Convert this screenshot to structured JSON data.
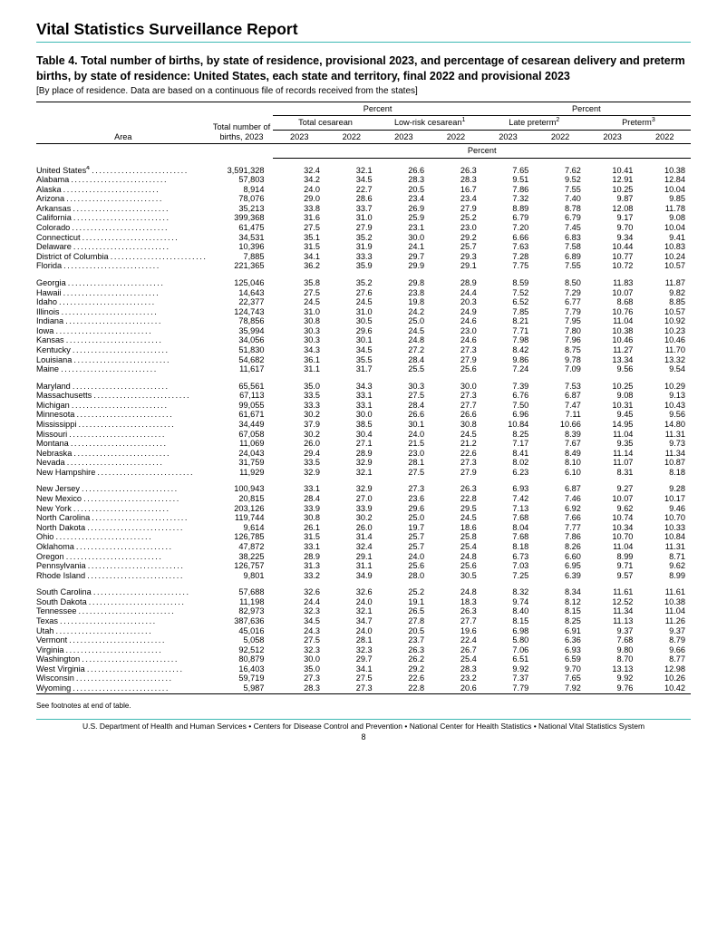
{
  "report_title": "Vital Statistics Surveillance Report",
  "table_title": "Table 4. Total number of births, by state of residence, provisional 2023, and percentage of cesarean delivery and preterm births, by state of residence: United States, each state and territory, final 2022 and provisional 2023",
  "table_note": "[By place of residence. Data are based on a continuous file of records received from the states]",
  "header": {
    "area": "Area",
    "total": "Total number of births, 2023",
    "percent": "Percent",
    "total_cesarean": "Total cesarean",
    "lowrisk_cesarean": "Low-risk cesarean",
    "lowrisk_sup": "1",
    "late_preterm": "Late preterm",
    "late_preterm_sup": "2",
    "preterm": "Preterm",
    "preterm_sup": "3",
    "y2023": "2023",
    "y2022": "2022"
  },
  "groups": [
    {
      "rows": [
        {
          "area": "United States",
          "sup": "4",
          "indent": false,
          "total": "3,591,328",
          "tc23": "32.4",
          "tc22": "32.1",
          "lr23": "26.6",
          "lr22": "26.3",
          "lp23": "7.65",
          "lp22": "7.62",
          "pt23": "10.41",
          "pt22": "10.38"
        },
        {
          "area": "Alabama",
          "indent": true,
          "total": "57,803",
          "tc23": "34.2",
          "tc22": "34.5",
          "lr23": "28.3",
          "lr22": "28.3",
          "lp23": "9.51",
          "lp22": "9.52",
          "pt23": "12.91",
          "pt22": "12.84"
        },
        {
          "area": "Alaska",
          "indent": true,
          "total": "8,914",
          "tc23": "24.0",
          "tc22": "22.7",
          "lr23": "20.5",
          "lr22": "16.7",
          "lp23": "7.86",
          "lp22": "7.55",
          "pt23": "10.25",
          "pt22": "10.04"
        },
        {
          "area": "Arizona",
          "indent": true,
          "total": "78,076",
          "tc23": "29.0",
          "tc22": "28.6",
          "lr23": "23.4",
          "lr22": "23.4",
          "lp23": "7.32",
          "lp22": "7.40",
          "pt23": "9.87",
          "pt22": "9.85"
        },
        {
          "area": "Arkansas",
          "indent": true,
          "total": "35,213",
          "tc23": "33.8",
          "tc22": "33.7",
          "lr23": "26.9",
          "lr22": "27.9",
          "lp23": "8.89",
          "lp22": "8.78",
          "pt23": "12.08",
          "pt22": "11.78"
        },
        {
          "area": "California",
          "indent": true,
          "total": "399,368",
          "tc23": "31.6",
          "tc22": "31.0",
          "lr23": "25.9",
          "lr22": "25.2",
          "lp23": "6.79",
          "lp22": "6.79",
          "pt23": "9.17",
          "pt22": "9.08"
        },
        {
          "area": "Colorado",
          "indent": true,
          "total": "61,475",
          "tc23": "27.5",
          "tc22": "27.9",
          "lr23": "23.1",
          "lr22": "23.0",
          "lp23": "7.20",
          "lp22": "7.45",
          "pt23": "9.70",
          "pt22": "10.04"
        },
        {
          "area": "Connecticut",
          "indent": true,
          "total": "34,531",
          "tc23": "35.1",
          "tc22": "35.2",
          "lr23": "30.0",
          "lr22": "29.2",
          "lp23": "6.66",
          "lp22": "6.83",
          "pt23": "9.34",
          "pt22": "9.41"
        },
        {
          "area": "Delaware",
          "indent": true,
          "total": "10,396",
          "tc23": "31.5",
          "tc22": "31.9",
          "lr23": "24.1",
          "lr22": "25.7",
          "lp23": "7.63",
          "lp22": "7.58",
          "pt23": "10.44",
          "pt22": "10.83"
        },
        {
          "area": "District of Columbia",
          "indent": true,
          "total": "7,885",
          "tc23": "34.1",
          "tc22": "33.3",
          "lr23": "29.7",
          "lr22": "29.3",
          "lp23": "7.28",
          "lp22": "6.89",
          "pt23": "10.77",
          "pt22": "10.24"
        },
        {
          "area": "Florida",
          "indent": true,
          "total": "221,365",
          "tc23": "36.2",
          "tc22": "35.9",
          "lr23": "29.9",
          "lr22": "29.1",
          "lp23": "7.75",
          "lp22": "7.55",
          "pt23": "10.72",
          "pt22": "10.57"
        }
      ]
    },
    {
      "rows": [
        {
          "area": "Georgia",
          "indent": true,
          "total": "125,046",
          "tc23": "35.8",
          "tc22": "35.2",
          "lr23": "29.8",
          "lr22": "28.9",
          "lp23": "8.59",
          "lp22": "8.50",
          "pt23": "11.83",
          "pt22": "11.87"
        },
        {
          "area": "Hawaii",
          "indent": true,
          "total": "14,643",
          "tc23": "27.5",
          "tc22": "27.6",
          "lr23": "23.8",
          "lr22": "24.4",
          "lp23": "7.52",
          "lp22": "7.29",
          "pt23": "10.07",
          "pt22": "9.82"
        },
        {
          "area": "Idaho",
          "indent": true,
          "total": "22,377",
          "tc23": "24.5",
          "tc22": "24.5",
          "lr23": "19.8",
          "lr22": "20.3",
          "lp23": "6.52",
          "lp22": "6.77",
          "pt23": "8.68",
          "pt22": "8.85"
        },
        {
          "area": "Illinois",
          "indent": true,
          "total": "124,743",
          "tc23": "31.0",
          "tc22": "31.0",
          "lr23": "24.2",
          "lr22": "24.9",
          "lp23": "7.85",
          "lp22": "7.79",
          "pt23": "10.76",
          "pt22": "10.57"
        },
        {
          "area": "Indiana",
          "indent": true,
          "total": "78,856",
          "tc23": "30.8",
          "tc22": "30.5",
          "lr23": "25.0",
          "lr22": "24.6",
          "lp23": "8.21",
          "lp22": "7.95",
          "pt23": "11.04",
          "pt22": "10.92"
        },
        {
          "area": "Iowa",
          "indent": true,
          "total": "35,994",
          "tc23": "30.3",
          "tc22": "29.6",
          "lr23": "24.5",
          "lr22": "23.0",
          "lp23": "7.71",
          "lp22": "7.80",
          "pt23": "10.38",
          "pt22": "10.23"
        },
        {
          "area": "Kansas",
          "indent": true,
          "total": "34,056",
          "tc23": "30.3",
          "tc22": "30.1",
          "lr23": "24.8",
          "lr22": "24.6",
          "lp23": "7.98",
          "lp22": "7.96",
          "pt23": "10.46",
          "pt22": "10.46"
        },
        {
          "area": "Kentucky",
          "indent": true,
          "total": "51,830",
          "tc23": "34.3",
          "tc22": "34.5",
          "lr23": "27.2",
          "lr22": "27.3",
          "lp23": "8.42",
          "lp22": "8.75",
          "pt23": "11.27",
          "pt22": "11.70"
        },
        {
          "area": "Louisiana",
          "indent": true,
          "total": "54,682",
          "tc23": "36.1",
          "tc22": "35.5",
          "lr23": "28.4",
          "lr22": "27.9",
          "lp23": "9.86",
          "lp22": "9.78",
          "pt23": "13.34",
          "pt22": "13.32"
        },
        {
          "area": "Maine",
          "indent": true,
          "total": "11,617",
          "tc23": "31.1",
          "tc22": "31.7",
          "lr23": "25.5",
          "lr22": "25.6",
          "lp23": "7.24",
          "lp22": "7.09",
          "pt23": "9.56",
          "pt22": "9.54"
        }
      ]
    },
    {
      "rows": [
        {
          "area": "Maryland",
          "indent": true,
          "total": "65,561",
          "tc23": "35.0",
          "tc22": "34.3",
          "lr23": "30.3",
          "lr22": "30.0",
          "lp23": "7.39",
          "lp22": "7.53",
          "pt23": "10.25",
          "pt22": "10.29"
        },
        {
          "area": "Massachusetts",
          "indent": true,
          "total": "67,113",
          "tc23": "33.5",
          "tc22": "33.1",
          "lr23": "27.5",
          "lr22": "27.3",
          "lp23": "6.76",
          "lp22": "6.87",
          "pt23": "9.08",
          "pt22": "9.13"
        },
        {
          "area": "Michigan",
          "indent": true,
          "total": "99,055",
          "tc23": "33.3",
          "tc22": "33.1",
          "lr23": "28.4",
          "lr22": "27.7",
          "lp23": "7.50",
          "lp22": "7.47",
          "pt23": "10.31",
          "pt22": "10.43"
        },
        {
          "area": "Minnesota",
          "indent": true,
          "total": "61,671",
          "tc23": "30.2",
          "tc22": "30.0",
          "lr23": "26.6",
          "lr22": "26.6",
          "lp23": "6.96",
          "lp22": "7.11",
          "pt23": "9.45",
          "pt22": "9.56"
        },
        {
          "area": "Mississippi",
          "indent": true,
          "total": "34,449",
          "tc23": "37.9",
          "tc22": "38.5",
          "lr23": "30.1",
          "lr22": "30.8",
          "lp23": "10.84",
          "lp22": "10.66",
          "pt23": "14.95",
          "pt22": "14.80"
        },
        {
          "area": "Missouri",
          "indent": true,
          "total": "67,058",
          "tc23": "30.2",
          "tc22": "30.4",
          "lr23": "24.0",
          "lr22": "24.5",
          "lp23": "8.25",
          "lp22": "8.39",
          "pt23": "11.04",
          "pt22": "11.31"
        },
        {
          "area": "Montana",
          "indent": true,
          "total": "11,069",
          "tc23": "26.0",
          "tc22": "27.1",
          "lr23": "21.5",
          "lr22": "21.2",
          "lp23": "7.17",
          "lp22": "7.67",
          "pt23": "9.35",
          "pt22": "9.73"
        },
        {
          "area": "Nebraska",
          "indent": true,
          "total": "24,043",
          "tc23": "29.4",
          "tc22": "28.9",
          "lr23": "23.0",
          "lr22": "22.6",
          "lp23": "8.41",
          "lp22": "8.49",
          "pt23": "11.14",
          "pt22": "11.34"
        },
        {
          "area": "Nevada",
          "indent": true,
          "total": "31,759",
          "tc23": "33.5",
          "tc22": "32.9",
          "lr23": "28.1",
          "lr22": "27.3",
          "lp23": "8.02",
          "lp22": "8.10",
          "pt23": "11.07",
          "pt22": "10.87"
        },
        {
          "area": "New Hampshire",
          "indent": true,
          "total": "11,929",
          "tc23": "32.9",
          "tc22": "32.1",
          "lr23": "27.5",
          "lr22": "27.9",
          "lp23": "6.23",
          "lp22": "6.10",
          "pt23": "8.31",
          "pt22": "8.18"
        }
      ]
    },
    {
      "rows": [
        {
          "area": "New Jersey",
          "indent": true,
          "total": "100,943",
          "tc23": "33.1",
          "tc22": "32.9",
          "lr23": "27.3",
          "lr22": "26.3",
          "lp23": "6.93",
          "lp22": "6.87",
          "pt23": "9.27",
          "pt22": "9.28"
        },
        {
          "area": "New Mexico",
          "indent": true,
          "total": "20,815",
          "tc23": "28.4",
          "tc22": "27.0",
          "lr23": "23.6",
          "lr22": "22.8",
          "lp23": "7.42",
          "lp22": "7.46",
          "pt23": "10.07",
          "pt22": "10.17"
        },
        {
          "area": "New York",
          "indent": true,
          "total": "203,126",
          "tc23": "33.9",
          "tc22": "33.9",
          "lr23": "29.6",
          "lr22": "29.5",
          "lp23": "7.13",
          "lp22": "6.92",
          "pt23": "9.62",
          "pt22": "9.46"
        },
        {
          "area": "North Carolina",
          "indent": true,
          "total": "119,744",
          "tc23": "30.8",
          "tc22": "30.2",
          "lr23": "25.0",
          "lr22": "24.5",
          "lp23": "7.68",
          "lp22": "7.66",
          "pt23": "10.74",
          "pt22": "10.70"
        },
        {
          "area": "North Dakota",
          "indent": true,
          "total": "9,614",
          "tc23": "26.1",
          "tc22": "26.0",
          "lr23": "19.7",
          "lr22": "18.6",
          "lp23": "8.04",
          "lp22": "7.77",
          "pt23": "10.34",
          "pt22": "10.33"
        },
        {
          "area": "Ohio",
          "indent": true,
          "total": "126,785",
          "tc23": "31.5",
          "tc22": "31.4",
          "lr23": "25.7",
          "lr22": "25.8",
          "lp23": "7.68",
          "lp22": "7.86",
          "pt23": "10.70",
          "pt22": "10.84"
        },
        {
          "area": "Oklahoma",
          "indent": true,
          "total": "47,872",
          "tc23": "33.1",
          "tc22": "32.4",
          "lr23": "25.7",
          "lr22": "25.4",
          "lp23": "8.18",
          "lp22": "8.26",
          "pt23": "11.04",
          "pt22": "11.31"
        },
        {
          "area": "Oregon",
          "indent": true,
          "total": "38,225",
          "tc23": "28.9",
          "tc22": "29.1",
          "lr23": "24.0",
          "lr22": "24.8",
          "lp23": "6.73",
          "lp22": "6.60",
          "pt23": "8.99",
          "pt22": "8.71"
        },
        {
          "area": "Pennsylvania",
          "indent": true,
          "total": "126,757",
          "tc23": "31.3",
          "tc22": "31.1",
          "lr23": "25.6",
          "lr22": "25.6",
          "lp23": "7.03",
          "lp22": "6.95",
          "pt23": "9.71",
          "pt22": "9.62"
        },
        {
          "area": "Rhode Island",
          "indent": true,
          "total": "9,801",
          "tc23": "33.2",
          "tc22": "34.9",
          "lr23": "28.0",
          "lr22": "30.5",
          "lp23": "7.25",
          "lp22": "6.39",
          "pt23": "9.57",
          "pt22": "8.99"
        }
      ]
    },
    {
      "rows": [
        {
          "area": "South Carolina",
          "indent": true,
          "total": "57,688",
          "tc23": "32.6",
          "tc22": "32.6",
          "lr23": "25.2",
          "lr22": "24.8",
          "lp23": "8.32",
          "lp22": "8.34",
          "pt23": "11.61",
          "pt22": "11.61"
        },
        {
          "area": "South Dakota",
          "indent": true,
          "total": "11,198",
          "tc23": "24.4",
          "tc22": "24.0",
          "lr23": "19.1",
          "lr22": "18.3",
          "lp23": "9.74",
          "lp22": "8.12",
          "pt23": "12.52",
          "pt22": "10.38"
        },
        {
          "area": "Tennessee",
          "indent": true,
          "total": "82,973",
          "tc23": "32.3",
          "tc22": "32.1",
          "lr23": "26.5",
          "lr22": "26.3",
          "lp23": "8.40",
          "lp22": "8.15",
          "pt23": "11.34",
          "pt22": "11.04"
        },
        {
          "area": "Texas",
          "indent": true,
          "total": "387,636",
          "tc23": "34.5",
          "tc22": "34.7",
          "lr23": "27.8",
          "lr22": "27.7",
          "lp23": "8.15",
          "lp22": "8.25",
          "pt23": "11.13",
          "pt22": "11.26"
        },
        {
          "area": "Utah",
          "indent": true,
          "total": "45,016",
          "tc23": "24.3",
          "tc22": "24.0",
          "lr23": "20.5",
          "lr22": "19.6",
          "lp23": "6.98",
          "lp22": "6.91",
          "pt23": "9.37",
          "pt22": "9.37"
        },
        {
          "area": "Vermont",
          "indent": true,
          "total": "5,058",
          "tc23": "27.5",
          "tc22": "28.1",
          "lr23": "23.7",
          "lr22": "22.4",
          "lp23": "5.80",
          "lp22": "6.36",
          "pt23": "7.68",
          "pt22": "8.79"
        },
        {
          "area": "Virginia",
          "indent": true,
          "total": "92,512",
          "tc23": "32.3",
          "tc22": "32.3",
          "lr23": "26.3",
          "lr22": "26.7",
          "lp23": "7.06",
          "lp22": "6.93",
          "pt23": "9.80",
          "pt22": "9.66"
        },
        {
          "area": "Washington",
          "indent": true,
          "total": "80,879",
          "tc23": "30.0",
          "tc22": "29.7",
          "lr23": "26.2",
          "lr22": "25.4",
          "lp23": "6.51",
          "lp22": "6.59",
          "pt23": "8.70",
          "pt22": "8.77"
        },
        {
          "area": "West Virginia",
          "indent": true,
          "total": "16,403",
          "tc23": "35.0",
          "tc22": "34.1",
          "lr23": "29.2",
          "lr22": "28.3",
          "lp23": "9.92",
          "lp22": "9.70",
          "pt23": "13.13",
          "pt22": "12.98"
        },
        {
          "area": "Wisconsin",
          "indent": true,
          "total": "59,719",
          "tc23": "27.3",
          "tc22": "27.5",
          "lr23": "22.6",
          "lr22": "23.2",
          "lp23": "7.37",
          "lp22": "7.65",
          "pt23": "9.92",
          "pt22": "10.26"
        },
        {
          "area": "Wyoming",
          "indent": true,
          "total": "5,987",
          "tc23": "28.3",
          "tc22": "27.3",
          "lr23": "22.8",
          "lr22": "20.6",
          "lp23": "7.79",
          "lp22": "7.92",
          "pt23": "9.76",
          "pt22": "10.42"
        }
      ]
    }
  ],
  "footnote": "See footnotes at end of table.",
  "footer": "U.S. Department of Health and Human Services • Centers for Disease Control and Prevention • National Center for Health Statistics • National Vital Statistics System",
  "page_number": "8",
  "colors": {
    "teal": "#3eb9b4",
    "text": "#000000",
    "bg": "#ffffff"
  }
}
